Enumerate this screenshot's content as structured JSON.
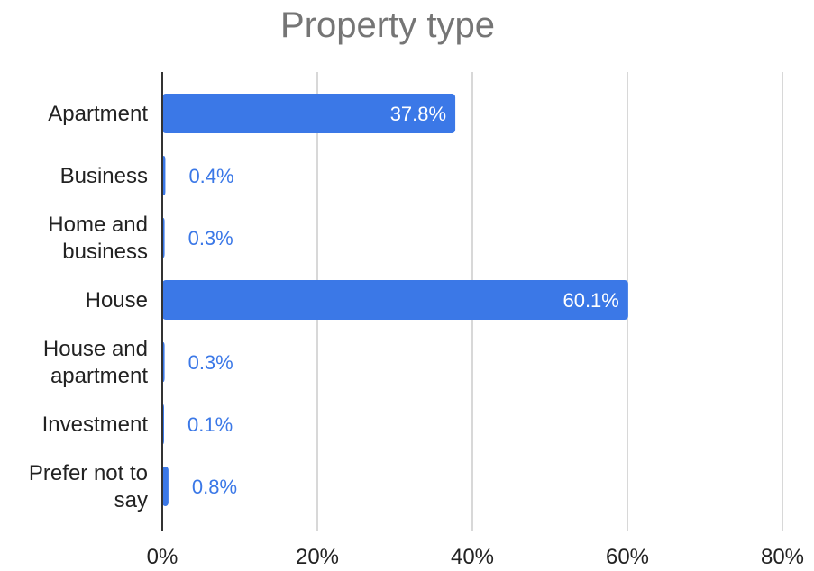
{
  "chart_data": {
    "type": "bar",
    "orientation": "horizontal",
    "title": "Property type",
    "xlabel": "",
    "ylabel": "",
    "categories": [
      [
        "Apartment"
      ],
      [
        "Business"
      ],
      [
        "Home and",
        "business"
      ],
      [
        "House"
      ],
      [
        "House and",
        "apartment"
      ],
      [
        "Investment"
      ],
      [
        "Prefer not to",
        "say"
      ]
    ],
    "values": [
      37.8,
      0.4,
      0.3,
      60.1,
      0.3,
      0.1,
      0.8
    ],
    "data_labels": [
      "37.8%",
      "0.4%",
      "0.3%",
      "60.1%",
      "0.3%",
      "0.1%",
      "0.8%"
    ],
    "xlim": [
      0,
      80
    ],
    "x_ticks": [
      0,
      20,
      40,
      60,
      80
    ],
    "x_tick_labels": [
      "0%",
      "20%",
      "40%",
      "60%",
      "80%"
    ],
    "grid": "vertical",
    "legend": "none",
    "colors": {
      "bar": "#3b78e7",
      "label_inside": "#ffffff",
      "label_outside": "#3b78e7",
      "grid": "#cccccc",
      "axis": "#333333",
      "title": "#757575"
    }
  }
}
